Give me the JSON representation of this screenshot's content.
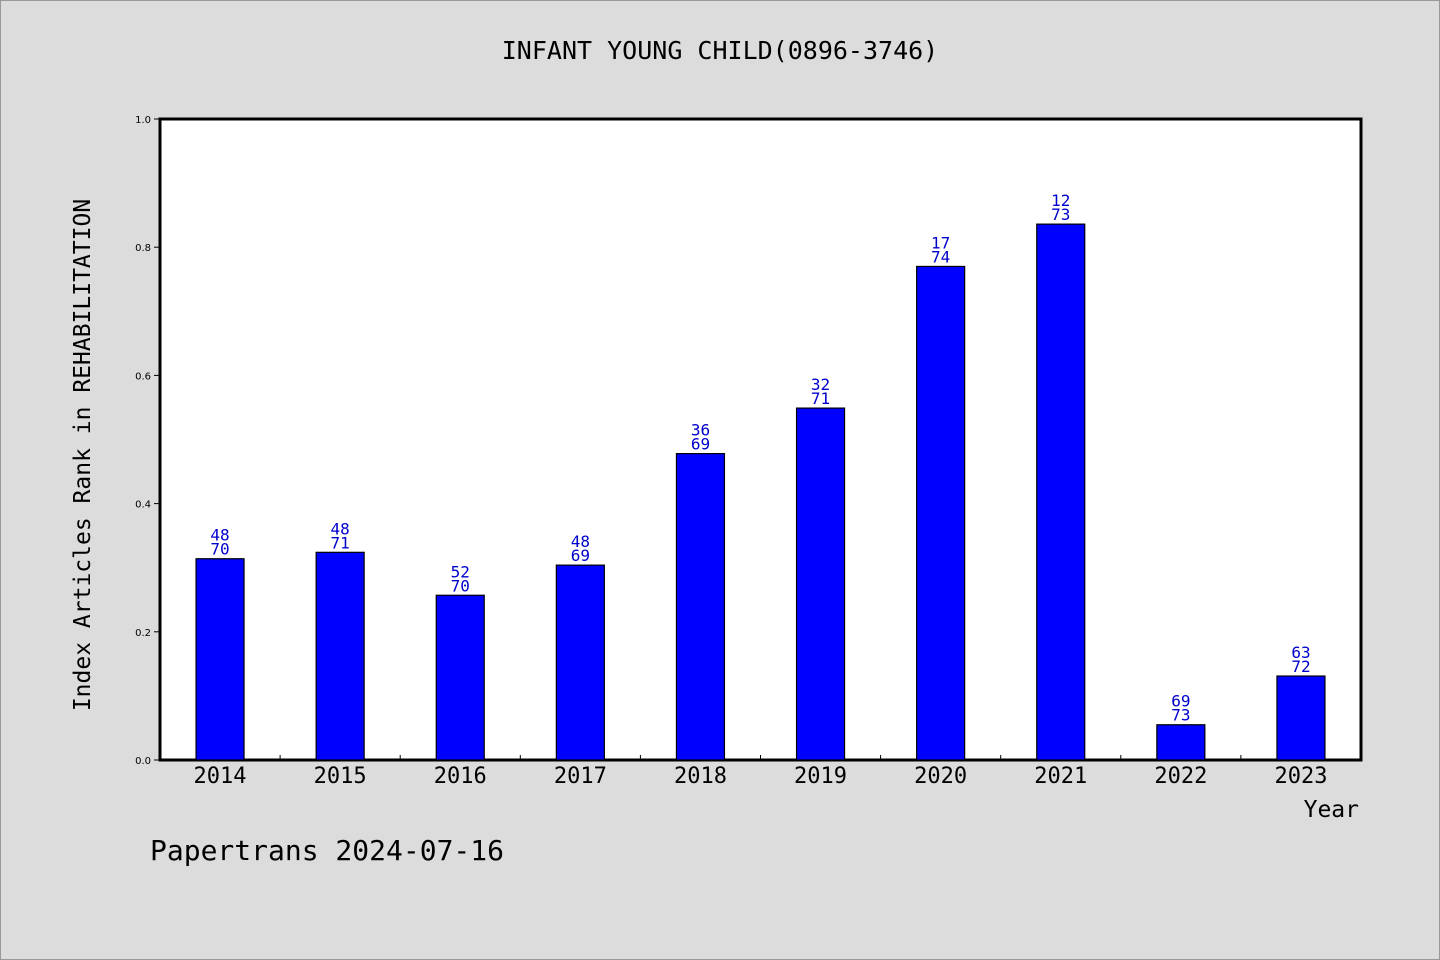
{
  "chart_data": {
    "type": "bar",
    "title": "INFANT YOUNG CHILD(0896-3746)",
    "ylabel": "Index Articles Rank in REHABILITATION",
    "xlabel": "Year",
    "ylim": [
      0,
      1.0
    ],
    "yticks": [
      "0.0",
      "0.2",
      "0.4",
      "0.6",
      "0.8",
      "1.0"
    ],
    "categories": [
      "2014",
      "2015",
      "2016",
      "2017",
      "2018",
      "2019",
      "2020",
      "2021",
      "2022",
      "2023"
    ],
    "values": [
      0.314,
      0.324,
      0.257,
      0.304,
      0.478,
      0.549,
      0.77,
      0.836,
      0.055,
      0.131
    ],
    "label_top": [
      "48",
      "48",
      "52",
      "48",
      "36",
      "32",
      "17",
      "12",
      "69",
      "63"
    ],
    "label_bottom": [
      "70",
      "71",
      "70",
      "69",
      "69",
      "71",
      "74",
      "73",
      "73",
      "72"
    ],
    "bar_color": "#0000ff",
    "label_color": "#0000cc",
    "grid": false
  },
  "footer": "Papertrans 2024-07-16"
}
